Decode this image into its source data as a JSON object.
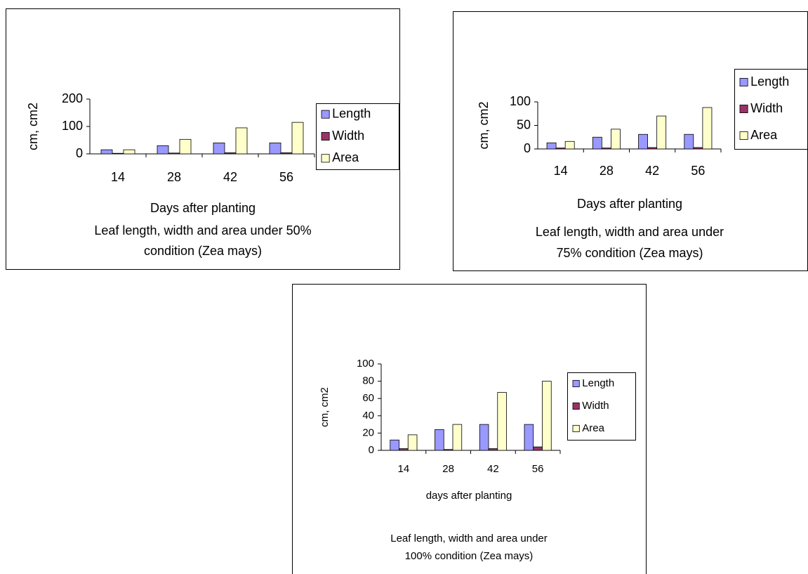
{
  "chart_data": [
    {
      "type": "bar",
      "title": [
        "Leaf length, width and area under 50%",
        "condition (Zea mays)"
      ],
      "xlabel": "Days after planting",
      "ylabel": "cm, cm2",
      "categories": [
        "14",
        "28",
        "42",
        "56"
      ],
      "series": [
        {
          "name": "Length",
          "color": "#9999ff",
          "values": [
            15,
            30,
            40,
            40
          ]
        },
        {
          "name": "Width",
          "color": "#993366",
          "values": [
            2,
            3,
            4,
            4
          ]
        },
        {
          "name": "Area",
          "color": "#ffffcc",
          "values": [
            15,
            53,
            95,
            115
          ]
        }
      ],
      "ylim": [
        0,
        200
      ],
      "yticks": [
        0,
        100,
        200
      ]
    },
    {
      "type": "bar",
      "title": [
        "Leaf  length, width and area under",
        "75% condition (Zea mays)"
      ],
      "xlabel": "Days after planting",
      "ylabel": "cm, cm2",
      "categories": [
        "14",
        "28",
        "42",
        "56"
      ],
      "series": [
        {
          "name": "Length",
          "color": "#9999ff",
          "values": [
            13,
            25,
            31,
            31
          ]
        },
        {
          "name": "Width",
          "color": "#993366",
          "values": [
            2,
            2,
            3,
            3
          ]
        },
        {
          "name": "Area",
          "color": "#ffffcc",
          "values": [
            16,
            42,
            70,
            88
          ]
        }
      ],
      "ylim": [
        0,
        100
      ],
      "yticks": [
        0,
        50,
        100
      ]
    },
    {
      "type": "bar",
      "title": [
        "Leaf length, width and area under",
        "100% condition (Zea mays)"
      ],
      "xlabel": "days after planting",
      "ylabel": "cm, cm2",
      "categories": [
        "14",
        "28",
        "42",
        "56"
      ],
      "series": [
        {
          "name": "Length",
          "color": "#9999ff",
          "values": [
            12,
            24,
            30,
            30
          ]
        },
        {
          "name": "Width",
          "color": "#993366",
          "values": [
            2,
            1,
            2,
            4
          ]
        },
        {
          "name": "Area",
          "color": "#ffffcc",
          "values": [
            18,
            30,
            67,
            80
          ]
        }
      ],
      "ylim": [
        0,
        100
      ],
      "yticks": [
        0,
        20,
        40,
        60,
        80,
        100
      ]
    }
  ]
}
